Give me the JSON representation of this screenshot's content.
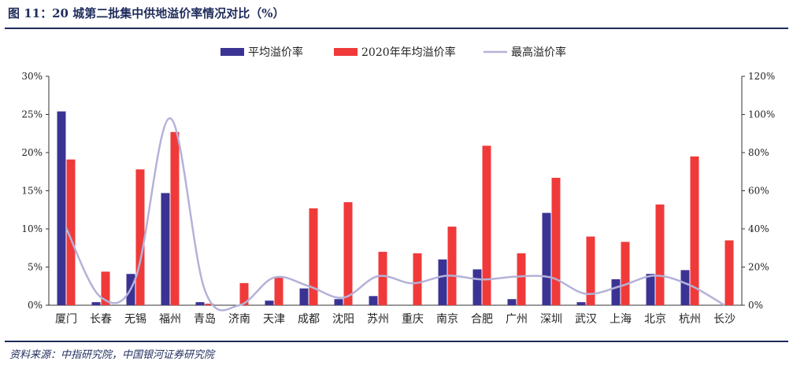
{
  "header": {
    "title": "图 11：20 城第二批集中供地溢价率情况对比（%）"
  },
  "footer": {
    "source": "资料来源：中指研究院，中国银河证券研究院"
  },
  "colors": {
    "series_avg": "#3b3394",
    "series_2020": "#f03a3a",
    "series_max": "#b4b2d8",
    "title": "#1f2c5c"
  },
  "chart_data": {
    "type": "bar",
    "categories": [
      "厦门",
      "长春",
      "无锡",
      "福州",
      "青岛",
      "济南",
      "天津",
      "成都",
      "沈阳",
      "苏州",
      "重庆",
      "南京",
      "合肥",
      "广州",
      "深圳",
      "武汉",
      "上海",
      "北京",
      "杭州",
      "长沙"
    ],
    "series": [
      {
        "name": "平均溢价率",
        "kind": "bar",
        "axis": "left",
        "values": [
          25.4,
          0.4,
          4.1,
          14.7,
          0.4,
          0.0,
          0.6,
          2.2,
          0.8,
          1.2,
          0.0,
          6.0,
          4.7,
          0.8,
          12.1,
          0.4,
          3.4,
          4.1,
          4.6,
          0.0
        ]
      },
      {
        "name": "2020年年均溢价率",
        "kind": "bar",
        "axis": "left",
        "values": [
          19.1,
          4.4,
          17.8,
          22.7,
          0.2,
          2.9,
          3.7,
          12.7,
          13.5,
          7.0,
          6.8,
          10.3,
          20.9,
          6.8,
          16.7,
          9.0,
          8.3,
          13.2,
          19.5,
          8.5
        ]
      },
      {
        "name": "最高溢价率",
        "kind": "line",
        "axis": "right",
        "values": [
          40.5,
          4.2,
          14.0,
          98.0,
          8.0,
          0.0,
          14.5,
          10.0,
          4.0,
          15.2,
          11.5,
          15.5,
          13.5,
          15.0,
          14.5,
          6.0,
          10.0,
          15.5,
          10.5,
          0.0
        ]
      }
    ],
    "y_left": {
      "ylim": [
        0,
        30
      ],
      "ticks": [
        "0%",
        "5%",
        "10%",
        "15%",
        "20%",
        "25%",
        "30%"
      ]
    },
    "y_right": {
      "ylim": [
        0,
        120
      ],
      "ticks": [
        "0%",
        "20%",
        "40%",
        "60%",
        "80%",
        "100%",
        "120%"
      ]
    },
    "legend_position": "top-center",
    "grid": false
  }
}
